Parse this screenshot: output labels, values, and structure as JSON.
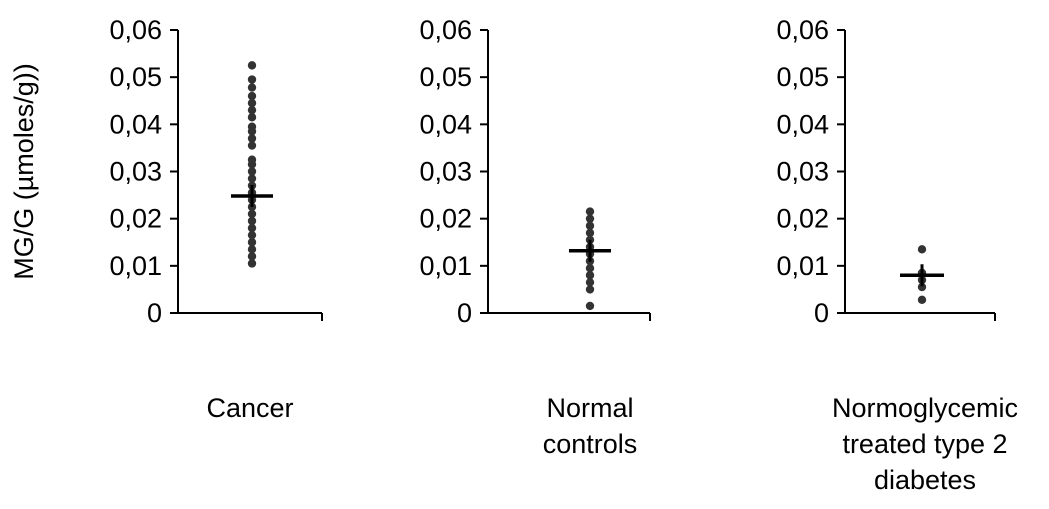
{
  "chart_data": {
    "type": "scatter",
    "ylabel": "MG/G (µmoles/g))",
    "ylim": [
      0,
      0.06
    ],
    "yticks": [
      {
        "value": 0,
        "label": "0"
      },
      {
        "value": 0.01,
        "label": "0,01"
      },
      {
        "value": 0.02,
        "label": "0,02"
      },
      {
        "value": 0.03,
        "label": "0,03"
      },
      {
        "value": 0.04,
        "label": "0,04"
      },
      {
        "value": 0.05,
        "label": "0,05"
      },
      {
        "value": 0.06,
        "label": "0,06"
      }
    ],
    "grid": false,
    "panels": [
      {
        "category": "Cancer",
        "category_lines": [
          "Cancer"
        ],
        "mean": 0.0248,
        "points": [
          0.0105,
          0.012,
          0.0135,
          0.015,
          0.0165,
          0.018,
          0.0195,
          0.021,
          0.0225,
          0.024,
          0.0255,
          0.027,
          0.0285,
          0.03,
          0.0315,
          0.0325,
          0.0355,
          0.037,
          0.0385,
          0.0395,
          0.0415,
          0.043,
          0.0445,
          0.046,
          0.0478,
          0.0495,
          0.0525
        ]
      },
      {
        "category": "Normal controls",
        "category_lines": [
          "Normal",
          "controls"
        ],
        "mean": 0.0132,
        "points": [
          0.0015,
          0.005,
          0.0065,
          0.008,
          0.0095,
          0.011,
          0.0125,
          0.014,
          0.0155,
          0.017,
          0.0185,
          0.02,
          0.0215
        ]
      },
      {
        "category": "Normoglycemic treated type 2 diabetes",
        "category_lines": [
          "Normoglycemic",
          "treated type 2",
          "diabetes"
        ],
        "mean": 0.008,
        "points": [
          0.0028,
          0.0055,
          0.007,
          0.0085,
          0.0135
        ]
      }
    ]
  }
}
